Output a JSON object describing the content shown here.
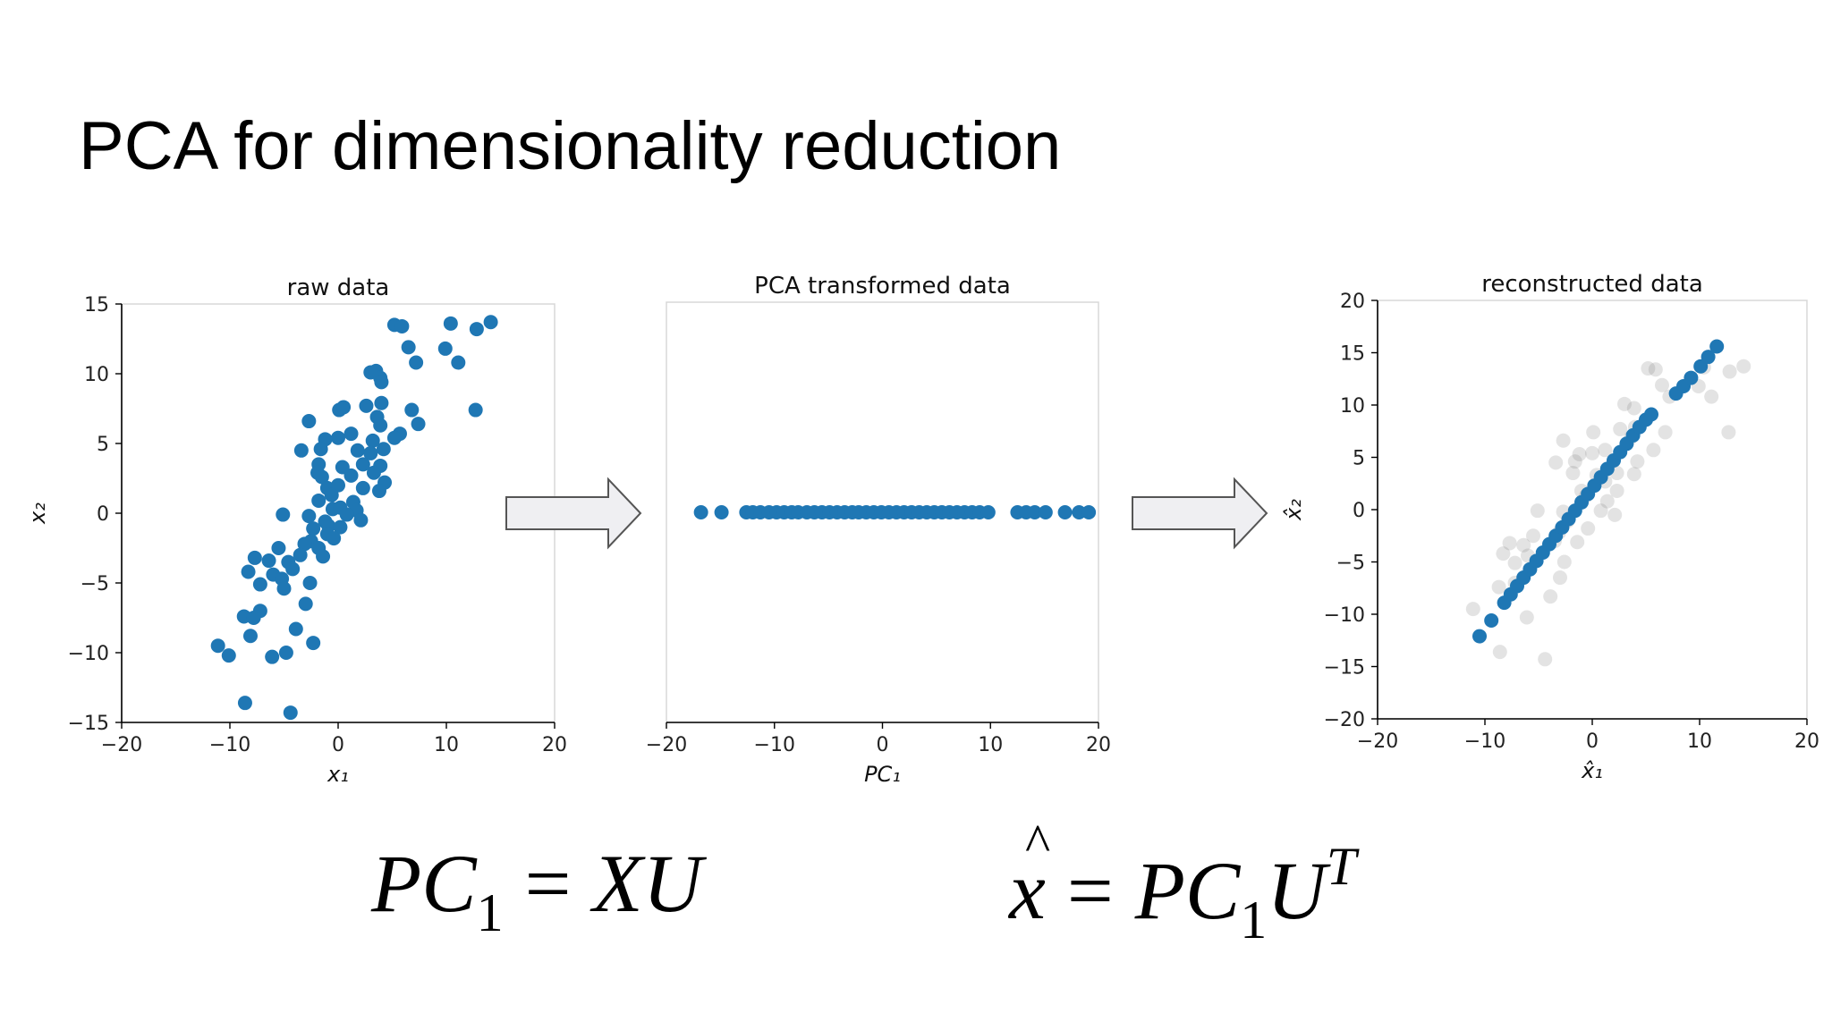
{
  "slide": {
    "title": "PCA for dimensionality reduction",
    "equation_1": {
      "lhs": "PC",
      "lhs_sub": "1",
      "op": "=",
      "rhs": "XU"
    },
    "equation_2": {
      "lhs": "x",
      "op": "=",
      "rhs": "PC",
      "rhs_sub": "1",
      "rhs_tail": "U",
      "rhs_sup": "T"
    }
  },
  "colors": {
    "point": "#1f77b4",
    "ghost_point": "#7f7f7f",
    "arrow_fill": "#efeff2",
    "arrow_stroke": "#555555",
    "axis": "#000000",
    "frame": "#d8d8d8"
  },
  "chart_data": [
    {
      "type": "scatter",
      "title": "raw data",
      "xlabel": "x₁",
      "ylabel": "x₂",
      "xlim": [
        -20,
        20
      ],
      "ylim": [
        -15,
        15
      ],
      "xticks": [
        -20,
        -10,
        0,
        10,
        20
      ],
      "yticks": [
        -15,
        -10,
        -5,
        0,
        5,
        10,
        15
      ],
      "xtick_labels": [
        "−20",
        "−10",
        "0",
        "10",
        "20"
      ],
      "ytick_labels": [
        "−15",
        "−10",
        "−5",
        "0",
        "5",
        "10",
        "15"
      ],
      "series": [
        {
          "points": [
            [
              5.2,
              13.5
            ],
            [
              5.9,
              13.4
            ],
            [
              10.4,
              13.6
            ],
            [
              12.8,
              13.2
            ],
            [
              14.1,
              13.7
            ],
            [
              6.5,
              11.9
            ],
            [
              9.9,
              11.8
            ],
            [
              11.1,
              10.8
            ],
            [
              7.2,
              10.8
            ],
            [
              3.0,
              10.1
            ],
            [
              3.5,
              10.2
            ],
            [
              3.9,
              9.7
            ],
            [
              4.0,
              9.4
            ],
            [
              12.7,
              7.4
            ],
            [
              0.1,
              7.4
            ],
            [
              0.5,
              7.6
            ],
            [
              2.6,
              7.7
            ],
            [
              4.0,
              7.9
            ],
            [
              6.8,
              7.4
            ],
            [
              7.4,
              6.4
            ],
            [
              -2.7,
              6.6
            ],
            [
              3.6,
              6.9
            ],
            [
              3.9,
              6.3
            ],
            [
              1.2,
              5.7
            ],
            [
              0.0,
              5.4
            ],
            [
              3.2,
              5.2
            ],
            [
              -1.2,
              5.3
            ],
            [
              5.7,
              5.7
            ],
            [
              5.2,
              5.4
            ],
            [
              -1.6,
              4.6
            ],
            [
              -3.4,
              4.5
            ],
            [
              1.8,
              4.5
            ],
            [
              4.2,
              4.6
            ],
            [
              3.0,
              4.3
            ],
            [
              -1.8,
              3.5
            ],
            [
              2.3,
              3.5
            ],
            [
              0.4,
              3.3
            ],
            [
              -1.9,
              2.9
            ],
            [
              1.2,
              2.7
            ],
            [
              -1.5,
              2.6
            ],
            [
              3.9,
              3.4
            ],
            [
              3.3,
              2.9
            ],
            [
              -1.0,
              1.8
            ],
            [
              0.0,
              2.0
            ],
            [
              2.3,
              1.8
            ],
            [
              4.3,
              2.2
            ],
            [
              3.8,
              1.6
            ],
            [
              -0.6,
              1.3
            ],
            [
              -1.8,
              0.9
            ],
            [
              1.4,
              0.8
            ],
            [
              -0.5,
              0.3
            ],
            [
              0.2,
              0.4
            ],
            [
              1.7,
              0.2
            ],
            [
              -5.1,
              -0.1
            ],
            [
              -2.7,
              -0.2
            ],
            [
              0.8,
              -0.1
            ],
            [
              -1.2,
              -0.6
            ],
            [
              2.1,
              -0.5
            ],
            [
              -0.9,
              -0.9
            ],
            [
              0.2,
              -1.0
            ],
            [
              -2.3,
              -1.1
            ],
            [
              -1.0,
              -1.5
            ],
            [
              -0.4,
              -1.8
            ],
            [
              -2.5,
              -2.0
            ],
            [
              -3.1,
              -2.2
            ],
            [
              -1.8,
              -2.5
            ],
            [
              -5.5,
              -2.5
            ],
            [
              -3.5,
              -3.0
            ],
            [
              -1.4,
              -3.1
            ],
            [
              -7.7,
              -3.2
            ],
            [
              -6.4,
              -3.4
            ],
            [
              -4.6,
              -3.5
            ],
            [
              -8.3,
              -4.2
            ],
            [
              -6.0,
              -4.4
            ],
            [
              -4.2,
              -4.0
            ],
            [
              -5.2,
              -4.7
            ],
            [
              -7.2,
              -5.1
            ],
            [
              -2.6,
              -5.0
            ],
            [
              -5.0,
              -5.4
            ],
            [
              -3.0,
              -6.5
            ],
            [
              -7.2,
              -7.0
            ],
            [
              -8.7,
              -7.4
            ],
            [
              -7.8,
              -7.5
            ],
            [
              -3.9,
              -8.3
            ],
            [
              -8.1,
              -8.8
            ],
            [
              -2.3,
              -9.3
            ],
            [
              -11.1,
              -9.5
            ],
            [
              -10.1,
              -10.2
            ],
            [
              -4.8,
              -10.0
            ],
            [
              -6.1,
              -10.3
            ],
            [
              -8.6,
              -13.6
            ],
            [
              -4.4,
              -14.3
            ]
          ]
        }
      ]
    },
    {
      "type": "scatter",
      "title": "PCA transformed data",
      "xlabel": "PC₁",
      "xlim": [
        -20,
        20
      ],
      "ylim": [
        -15,
        15
      ],
      "xticks": [
        -20,
        -10,
        0,
        10,
        20
      ],
      "xtick_labels": [
        "−20",
        "−10",
        "0",
        "10",
        "20"
      ],
      "series": [
        {
          "points": [
            [
              -16.8,
              0
            ],
            [
              -14.9,
              0
            ],
            [
              -12.6,
              0
            ],
            [
              -12.0,
              0
            ],
            [
              -11.3,
              0
            ],
            [
              -10.5,
              0
            ],
            [
              -9.8,
              0
            ],
            [
              -9.1,
              0
            ],
            [
              -8.4,
              0
            ],
            [
              -7.8,
              0
            ],
            [
              -7.0,
              0
            ],
            [
              -6.3,
              0
            ],
            [
              -5.6,
              0
            ],
            [
              -4.9,
              0
            ],
            [
              -4.2,
              0
            ],
            [
              -3.5,
              0
            ],
            [
              -2.8,
              0
            ],
            [
              -2.2,
              0
            ],
            [
              -1.5,
              0
            ],
            [
              -0.8,
              0
            ],
            [
              -0.1,
              0
            ],
            [
              0.6,
              0
            ],
            [
              1.3,
              0
            ],
            [
              2.0,
              0
            ],
            [
              2.7,
              0
            ],
            [
              3.4,
              0
            ],
            [
              4.1,
              0
            ],
            [
              4.8,
              0
            ],
            [
              5.5,
              0
            ],
            [
              6.2,
              0
            ],
            [
              6.9,
              0
            ],
            [
              7.6,
              0
            ],
            [
              8.3,
              0
            ],
            [
              9.0,
              0
            ],
            [
              9.8,
              0
            ],
            [
              12.5,
              0
            ],
            [
              13.3,
              0
            ],
            [
              14.1,
              0
            ],
            [
              15.1,
              0
            ],
            [
              16.9,
              0
            ],
            [
              18.2,
              0
            ],
            [
              19.1,
              0
            ]
          ]
        }
      ]
    },
    {
      "type": "scatter",
      "title": "reconstructed data",
      "xlabel": "x̂₁",
      "ylabel": "x̂₂",
      "xlim": [
        -20,
        20
      ],
      "ylim": [
        -20,
        20
      ],
      "xticks": [
        -20,
        -10,
        0,
        10,
        20
      ],
      "yticks": [
        -20,
        -15,
        -10,
        -5,
        0,
        5,
        10,
        15,
        20
      ],
      "xtick_labels": [
        "−20",
        "−10",
        "0",
        "10",
        "20"
      ],
      "ytick_labels": [
        "−20",
        "−15",
        "−10",
        "−5",
        "0",
        "5",
        "10",
        "15",
        "20"
      ],
      "series": [
        {
          "role": "reconstructed",
          "points": [
            [
              -10.5,
              -12.1
            ],
            [
              -9.4,
              -10.6
            ],
            [
              -8.2,
              -8.9
            ],
            [
              -7.6,
              -8.1
            ],
            [
              -7.0,
              -7.3
            ],
            [
              -6.4,
              -6.5
            ],
            [
              -5.8,
              -5.7
            ],
            [
              -5.2,
              -4.9
            ],
            [
              -4.6,
              -4.1
            ],
            [
              -4.0,
              -3.3
            ],
            [
              -3.4,
              -2.5
            ],
            [
              -2.8,
              -1.7
            ],
            [
              -2.2,
              -0.9
            ],
            [
              -1.6,
              -0.1
            ],
            [
              -1.0,
              0.7
            ],
            [
              -0.4,
              1.5
            ],
            [
              0.2,
              2.3
            ],
            [
              0.8,
              3.1
            ],
            [
              1.4,
              3.9
            ],
            [
              2.0,
              4.7
            ],
            [
              2.6,
              5.5
            ],
            [
              3.2,
              6.3
            ],
            [
              3.8,
              7.1
            ],
            [
              4.4,
              7.9
            ],
            [
              5.0,
              8.6
            ],
            [
              5.5,
              9.1
            ],
            [
              7.8,
              11.1
            ],
            [
              8.5,
              11.8
            ],
            [
              9.2,
              12.6
            ],
            [
              10.1,
              13.7
            ],
            [
              10.8,
              14.6
            ],
            [
              11.6,
              15.6
            ]
          ]
        },
        {
          "role": "original",
          "points": [
            [
              5.2,
              13.5
            ],
            [
              5.9,
              13.4
            ],
            [
              10.4,
              13.6
            ],
            [
              12.8,
              13.2
            ],
            [
              14.1,
              13.7
            ],
            [
              6.5,
              11.9
            ],
            [
              9.9,
              11.8
            ],
            [
              11.1,
              10.8
            ],
            [
              7.2,
              10.8
            ],
            [
              3.0,
              10.1
            ],
            [
              3.9,
              9.7
            ],
            [
              12.7,
              7.4
            ],
            [
              0.1,
              7.4
            ],
            [
              2.6,
              7.7
            ],
            [
              4.0,
              7.9
            ],
            [
              6.8,
              7.4
            ],
            [
              -2.7,
              6.6
            ],
            [
              3.6,
              6.9
            ],
            [
              1.2,
              5.7
            ],
            [
              0.0,
              5.4
            ],
            [
              -1.2,
              5.3
            ],
            [
              5.7,
              5.7
            ],
            [
              -1.6,
              4.6
            ],
            [
              -3.4,
              4.5
            ],
            [
              4.2,
              4.6
            ],
            [
              -1.8,
              3.5
            ],
            [
              2.3,
              3.5
            ],
            [
              0.4,
              3.3
            ],
            [
              1.2,
              2.7
            ],
            [
              3.9,
              3.4
            ],
            [
              -1.0,
              1.8
            ],
            [
              2.3,
              1.8
            ],
            [
              -0.6,
              1.3
            ],
            [
              1.4,
              0.8
            ],
            [
              -5.1,
              -0.1
            ],
            [
              -2.7,
              -0.2
            ],
            [
              0.8,
              -0.1
            ],
            [
              2.1,
              -0.5
            ],
            [
              -2.3,
              -1.1
            ],
            [
              -0.4,
              -1.8
            ],
            [
              -3.1,
              -2.2
            ],
            [
              -5.5,
              -2.5
            ],
            [
              -3.5,
              -3.0
            ],
            [
              -1.4,
              -3.1
            ],
            [
              -7.7,
              -3.2
            ],
            [
              -6.4,
              -3.4
            ],
            [
              -8.3,
              -4.2
            ],
            [
              -6.0,
              -4.4
            ],
            [
              -7.2,
              -5.1
            ],
            [
              -2.6,
              -5.0
            ],
            [
              -3.0,
              -6.5
            ],
            [
              -7.2,
              -7.0
            ],
            [
              -8.7,
              -7.4
            ],
            [
              -3.9,
              -8.3
            ],
            [
              -11.1,
              -9.5
            ],
            [
              -6.1,
              -10.3
            ],
            [
              -8.6,
              -13.6
            ],
            [
              -4.4,
              -14.3
            ]
          ]
        }
      ]
    }
  ]
}
